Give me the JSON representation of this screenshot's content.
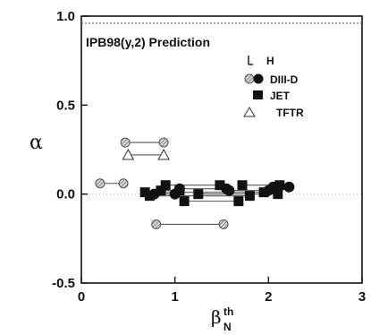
{
  "chart_data": {
    "type": "scatter",
    "title": "",
    "annotation": "IPB98(y,2) Prediction",
    "xlabel": "β",
    "xlabel_sub": "N",
    "xlabel_sup": "th",
    "ylabel": "α",
    "xlim": [
      0,
      3
    ],
    "ylim": [
      -0.5,
      1.0
    ],
    "x_ticks": [
      "0",
      "1",
      "2",
      "3"
    ],
    "y_ticks": [
      "1.0",
      "0.5",
      "0.0",
      "-0.5"
    ],
    "reference_line_y": 0.96,
    "legend": {
      "title": "H",
      "placement": "top-right",
      "entries": [
        {
          "label": "DIII-D",
          "marker": "circle-filled"
        },
        {
          "label": "JET",
          "marker": "square-filled"
        },
        {
          "label": "TFTR",
          "marker": "triangle-open"
        }
      ],
      "extra_marker": "circle-hatched"
    },
    "series": [
      {
        "marker": "circle-hatched",
        "segments": [
          [
            [
              0.2,
              0.06
            ],
            [
              0.45,
              0.06
            ]
          ],
          [
            [
              0.47,
              0.29
            ],
            [
              0.88,
              0.29
            ]
          ],
          [
            [
              0.8,
              -0.17
            ],
            [
              1.52,
              -0.17
            ]
          ]
        ]
      },
      {
        "marker": "triangle-open",
        "segments": [
          [
            [
              0.5,
              0.22
            ],
            [
              0.88,
              0.22
            ]
          ]
        ]
      },
      {
        "marker": "circle-filled",
        "segments": [
          [
            [
              0.78,
              0.0
            ],
            [
              1.0,
              0.0
            ]
          ],
          [
            [
              1.05,
              0.03
            ],
            [
              1.55,
              0.03
            ]
          ],
          [
            [
              1.58,
              0.02
            ],
            [
              2.0,
              0.02
            ]
          ],
          [
            [
              2.05,
              0.04
            ],
            [
              2.22,
              0.04
            ]
          ]
        ]
      },
      {
        "marker": "square-filled",
        "segments": [
          [
            [
              0.68,
              0.01
            ],
            [
              1.95,
              0.01
            ]
          ],
          [
            [
              0.9,
              0.05
            ],
            [
              1.48,
              0.05
            ]
          ],
          [
            [
              1.1,
              -0.04
            ],
            [
              1.68,
              -0.04
            ]
          ],
          [
            [
              1.25,
              0.0
            ],
            [
              2.1,
              0.0
            ]
          ],
          [
            [
              1.72,
              0.05
            ],
            [
              2.12,
              0.05
            ]
          ],
          [
            [
              0.73,
              -0.01
            ],
            [
              1.8,
              -0.01
            ]
          ],
          [
            [
              0.85,
              0.02
            ],
            [
              1.05,
              0.02
            ]
          ]
        ]
      }
    ]
  }
}
